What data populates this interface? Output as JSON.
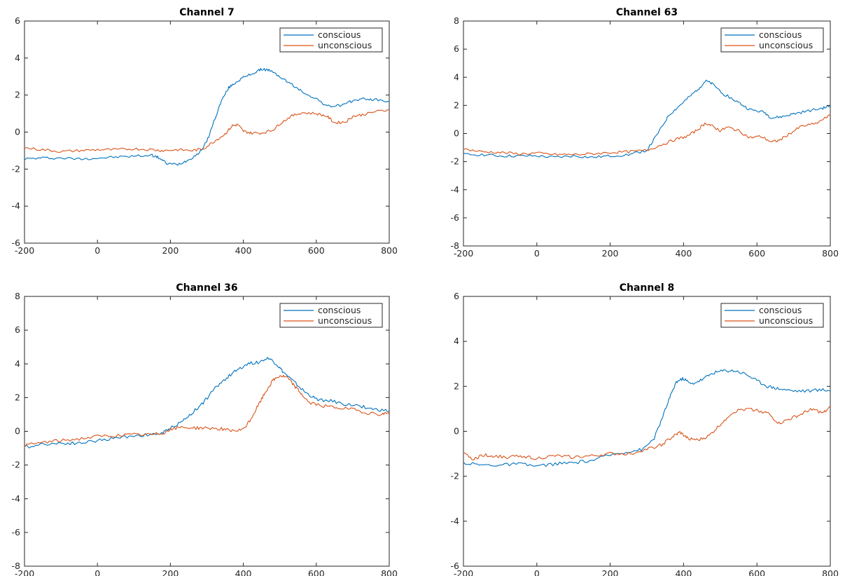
{
  "chart_data": [
    {
      "type": "line",
      "title": "Channel 7",
      "xlim": [
        -200,
        800
      ],
      "ylim": [
        -6,
        6
      ],
      "xticks": [
        -200,
        0,
        200,
        400,
        600,
        800
      ],
      "yticks": [
        -6,
        -4,
        -2,
        0,
        2,
        4,
        6
      ],
      "legend_position": "top-right",
      "grid": false,
      "series": [
        {
          "name": "conscious",
          "color": "#0072BD",
          "points": [
            [
              -200,
              -1.45
            ],
            [
              -150,
              -1.4
            ],
            [
              -100,
              -1.4
            ],
            [
              -50,
              -1.45
            ],
            [
              0,
              -1.4
            ],
            [
              50,
              -1.35
            ],
            [
              100,
              -1.3
            ],
            [
              150,
              -1.25
            ],
            [
              170,
              -1.4
            ],
            [
              190,
              -1.7
            ],
            [
              220,
              -1.75
            ],
            [
              250,
              -1.5
            ],
            [
              280,
              -1.1
            ],
            [
              300,
              -0.5
            ],
            [
              320,
              0.6
            ],
            [
              340,
              1.7
            ],
            [
              360,
              2.4
            ],
            [
              380,
              2.7
            ],
            [
              400,
              2.95
            ],
            [
              430,
              3.2
            ],
            [
              450,
              3.4
            ],
            [
              470,
              3.35
            ],
            [
              500,
              3.0
            ],
            [
              530,
              2.6
            ],
            [
              560,
              2.2
            ],
            [
              600,
              1.8
            ],
            [
              630,
              1.4
            ],
            [
              650,
              1.4
            ],
            [
              680,
              1.5
            ],
            [
              700,
              1.7
            ],
            [
              730,
              1.8
            ],
            [
              760,
              1.75
            ],
            [
              800,
              1.65
            ]
          ]
        },
        {
          "name": "unconscious",
          "color": "#D95319",
          "points": [
            [
              -200,
              -0.85
            ],
            [
              -150,
              -0.95
            ],
            [
              -100,
              -1.05
            ],
            [
              -50,
              -1.0
            ],
            [
              0,
              -0.95
            ],
            [
              50,
              -0.95
            ],
            [
              100,
              -0.9
            ],
            [
              150,
              -0.95
            ],
            [
              180,
              -1.0
            ],
            [
              220,
              -0.95
            ],
            [
              260,
              -1.0
            ],
            [
              290,
              -0.9
            ],
            [
              320,
              -0.5
            ],
            [
              350,
              -0.1
            ],
            [
              370,
              0.35
            ],
            [
              385,
              0.4
            ],
            [
              400,
              0.05
            ],
            [
              420,
              -0.05
            ],
            [
              450,
              -0.05
            ],
            [
              480,
              0.1
            ],
            [
              500,
              0.45
            ],
            [
              530,
              0.85
            ],
            [
              560,
              1.05
            ],
            [
              600,
              1.0
            ],
            [
              630,
              0.85
            ],
            [
              650,
              0.5
            ],
            [
              680,
              0.55
            ],
            [
              700,
              0.85
            ],
            [
              730,
              0.95
            ],
            [
              760,
              1.1
            ],
            [
              800,
              1.2
            ]
          ]
        }
      ]
    },
    {
      "type": "line",
      "title": "Channel 63",
      "xlim": [
        -200,
        800
      ],
      "ylim": [
        -8,
        8
      ],
      "xticks": [
        -200,
        0,
        200,
        400,
        600,
        800
      ],
      "yticks": [
        -8,
        -6,
        -4,
        -2,
        0,
        2,
        4,
        6,
        8
      ],
      "legend_position": "top-right",
      "grid": false,
      "series": [
        {
          "name": "conscious",
          "color": "#0072BD",
          "points": [
            [
              -200,
              -1.5
            ],
            [
              -150,
              -1.5
            ],
            [
              -100,
              -1.6
            ],
            [
              -50,
              -1.6
            ],
            [
              0,
              -1.6
            ],
            [
              50,
              -1.7
            ],
            [
              100,
              -1.6
            ],
            [
              150,
              -1.7
            ],
            [
              200,
              -1.6
            ],
            [
              250,
              -1.5
            ],
            [
              300,
              -1.2
            ],
            [
              330,
              0.0
            ],
            [
              360,
              1.3
            ],
            [
              390,
              2.0
            ],
            [
              420,
              2.7
            ],
            [
              445,
              3.3
            ],
            [
              460,
              3.75
            ],
            [
              480,
              3.5
            ],
            [
              510,
              2.8
            ],
            [
              550,
              2.2
            ],
            [
              580,
              1.7
            ],
            [
              620,
              1.5
            ],
            [
              640,
              1.1
            ],
            [
              670,
              1.2
            ],
            [
              700,
              1.4
            ],
            [
              740,
              1.6
            ],
            [
              780,
              1.8
            ],
            [
              800,
              1.95
            ]
          ]
        },
        {
          "name": "unconscious",
          "color": "#D95319",
          "points": [
            [
              -200,
              -1.1
            ],
            [
              -150,
              -1.3
            ],
            [
              -100,
              -1.35
            ],
            [
              -50,
              -1.45
            ],
            [
              0,
              -1.4
            ],
            [
              50,
              -1.5
            ],
            [
              100,
              -1.5
            ],
            [
              150,
              -1.45
            ],
            [
              200,
              -1.35
            ],
            [
              250,
              -1.3
            ],
            [
              300,
              -1.2
            ],
            [
              340,
              -0.8
            ],
            [
              380,
              -0.4
            ],
            [
              410,
              -0.2
            ],
            [
              440,
              0.3
            ],
            [
              460,
              0.75
            ],
            [
              480,
              0.5
            ],
            [
              500,
              0.2
            ],
            [
              520,
              0.45
            ],
            [
              550,
              0.2
            ],
            [
              580,
              -0.3
            ],
            [
              610,
              -0.2
            ],
            [
              640,
              -0.6
            ],
            [
              660,
              -0.5
            ],
            [
              690,
              0.0
            ],
            [
              720,
              0.5
            ],
            [
              760,
              0.7
            ],
            [
              800,
              1.3
            ]
          ]
        }
      ]
    },
    {
      "type": "line",
      "title": "Channel 36",
      "xlim": [
        -200,
        800
      ],
      "ylim": [
        -8,
        8
      ],
      "xticks": [
        -200,
        0,
        200,
        400,
        600,
        800
      ],
      "yticks": [
        -8,
        -6,
        -4,
        -2,
        0,
        2,
        4,
        6,
        8
      ],
      "legend_position": "top-right",
      "grid": false,
      "series": [
        {
          "name": "conscious",
          "color": "#0072BD",
          "points": [
            [
              -200,
              -0.95
            ],
            [
              -150,
              -0.75
            ],
            [
              -100,
              -0.7
            ],
            [
              -50,
              -0.7
            ],
            [
              0,
              -0.55
            ],
            [
              50,
              -0.4
            ],
            [
              100,
              -0.25
            ],
            [
              150,
              -0.2
            ],
            [
              180,
              -0.1
            ],
            [
              200,
              0.2
            ],
            [
              230,
              0.55
            ],
            [
              260,
              1.1
            ],
            [
              290,
              1.7
            ],
            [
              320,
              2.5
            ],
            [
              350,
              3.1
            ],
            [
              380,
              3.6
            ],
            [
              410,
              4.0
            ],
            [
              440,
              4.1
            ],
            [
              470,
              4.35
            ],
            [
              490,
              4.0
            ],
            [
              510,
              3.5
            ],
            [
              540,
              2.9
            ],
            [
              570,
              2.3
            ],
            [
              600,
              1.9
            ],
            [
              640,
              1.8
            ],
            [
              680,
              1.6
            ],
            [
              720,
              1.5
            ],
            [
              760,
              1.3
            ],
            [
              800,
              1.2
            ]
          ]
        },
        {
          "name": "unconscious",
          "color": "#D95319",
          "points": [
            [
              -200,
              -0.85
            ],
            [
              -150,
              -0.65
            ],
            [
              -100,
              -0.55
            ],
            [
              -50,
              -0.45
            ],
            [
              0,
              -0.3
            ],
            [
              50,
              -0.25
            ],
            [
              100,
              -0.2
            ],
            [
              150,
              -0.2
            ],
            [
              180,
              -0.1
            ],
            [
              200,
              0.1
            ],
            [
              230,
              0.25
            ],
            [
              270,
              0.2
            ],
            [
              300,
              0.2
            ],
            [
              340,
              0.15
            ],
            [
              370,
              0.0
            ],
            [
              400,
              0.1
            ],
            [
              420,
              0.7
            ],
            [
              440,
              1.5
            ],
            [
              460,
              2.3
            ],
            [
              480,
              3.0
            ],
            [
              500,
              3.3
            ],
            [
              520,
              3.2
            ],
            [
              540,
              2.7
            ],
            [
              560,
              2.2
            ],
            [
              580,
              1.7
            ],
            [
              620,
              1.5
            ],
            [
              660,
              1.4
            ],
            [
              700,
              1.3
            ],
            [
              740,
              1.1
            ],
            [
              780,
              1.0
            ],
            [
              800,
              1.15
            ]
          ]
        }
      ]
    },
    {
      "type": "line",
      "title": "Channel 8",
      "xlim": [
        -200,
        800
      ],
      "ylim": [
        -6,
        6
      ],
      "xticks": [
        -200,
        0,
        200,
        400,
        600,
        800
      ],
      "yticks": [
        -6,
        -4,
        -2,
        0,
        2,
        4,
        6
      ],
      "legend_position": "top-right",
      "grid": false,
      "series": [
        {
          "name": "conscious",
          "color": "#0072BD",
          "points": [
            [
              -200,
              -1.4
            ],
            [
              -150,
              -1.5
            ],
            [
              -100,
              -1.5
            ],
            [
              -50,
              -1.45
            ],
            [
              0,
              -1.55
            ],
            [
              50,
              -1.45
            ],
            [
              100,
              -1.4
            ],
            [
              150,
              -1.3
            ],
            [
              200,
              -1.05
            ],
            [
              250,
              -0.9
            ],
            [
              290,
              -0.8
            ],
            [
              320,
              -0.3
            ],
            [
              340,
              0.5
            ],
            [
              360,
              1.4
            ],
            [
              380,
              2.2
            ],
            [
              400,
              2.35
            ],
            [
              420,
              2.1
            ],
            [
              450,
              2.3
            ],
            [
              480,
              2.6
            ],
            [
              510,
              2.7
            ],
            [
              540,
              2.7
            ],
            [
              570,
              2.55
            ],
            [
              600,
              2.25
            ],
            [
              630,
              2.0
            ],
            [
              660,
              1.9
            ],
            [
              700,
              1.8
            ],
            [
              740,
              1.8
            ],
            [
              780,
              1.85
            ],
            [
              800,
              1.8
            ]
          ]
        },
        {
          "name": "unconscious",
          "color": "#D95319",
          "points": [
            [
              -200,
              -1.0
            ],
            [
              -170,
              -1.25
            ],
            [
              -150,
              -1.05
            ],
            [
              -120,
              -1.1
            ],
            [
              -80,
              -1.15
            ],
            [
              -40,
              -1.1
            ],
            [
              0,
              -1.2
            ],
            [
              50,
              -1.1
            ],
            [
              100,
              -1.15
            ],
            [
              150,
              -1.1
            ],
            [
              200,
              -1.0
            ],
            [
              250,
              -1.0
            ],
            [
              300,
              -0.8
            ],
            [
              340,
              -0.6
            ],
            [
              370,
              -0.25
            ],
            [
              390,
              -0.05
            ],
            [
              410,
              -0.3
            ],
            [
              440,
              -0.4
            ],
            [
              470,
              -0.2
            ],
            [
              500,
              0.3
            ],
            [
              530,
              0.8
            ],
            [
              560,
              1.0
            ],
            [
              600,
              0.95
            ],
            [
              630,
              0.8
            ],
            [
              660,
              0.35
            ],
            [
              690,
              0.55
            ],
            [
              720,
              0.75
            ],
            [
              750,
              1.0
            ],
            [
              780,
              0.8
            ],
            [
              800,
              1.05
            ]
          ]
        }
      ]
    }
  ]
}
